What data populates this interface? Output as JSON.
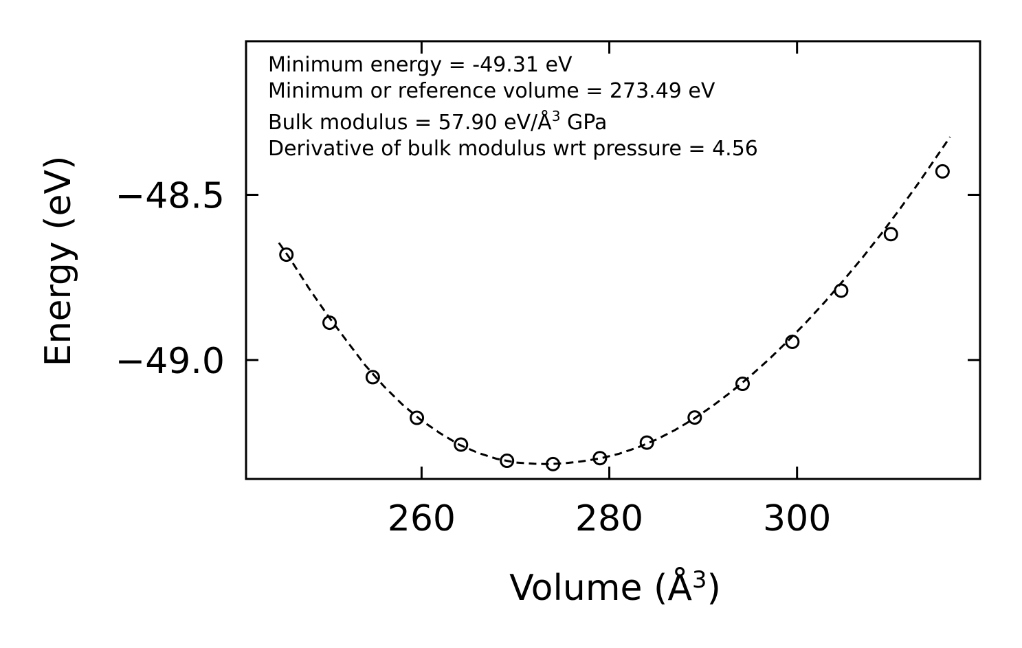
{
  "chart_data": {
    "type": "line",
    "title": "",
    "xlabel": "Volume (Å",
    "xlabel_sup": "3",
    "xlabel_close": ")",
    "ylabel": "Energy (eV)",
    "xlim": [
      241.3,
      319.5
    ],
    "ylim": [
      -49.36,
      -48.035
    ],
    "xticks": [
      260,
      280,
      300
    ],
    "xtick_labels": [
      "260",
      "280",
      "300"
    ],
    "yticks": [
      -48.5,
      -49.0
    ],
    "ytick_labels": [
      "−48.5",
      "−49.0"
    ],
    "grid": false,
    "legend": "none",
    "series": [
      {
        "name": "data",
        "style": "open-circle-markers",
        "x": [
          245.6,
          250.2,
          254.8,
          259.5,
          264.2,
          269.1,
          274.0,
          279.0,
          284.0,
          289.1,
          294.2,
          299.5,
          304.7,
          310.0,
          315.5
        ],
        "y": [
          -48.681,
          -48.887,
          -49.052,
          -49.175,
          -49.256,
          -49.305,
          -49.315,
          -49.297,
          -49.25,
          -49.174,
          -49.072,
          -48.945,
          -48.79,
          -48.619,
          -48.429
        ]
      },
      {
        "name": "fit",
        "style": "dashed-line",
        "x": [
          244.8,
          246.0,
          248.0,
          250.0,
          252.0,
          254.0,
          256.0,
          258.0,
          260.0,
          262.0,
          264.0,
          266.0,
          268.0,
          270.0,
          272.0,
          273.5,
          275.0,
          277.0,
          279.0,
          281.0,
          283.0,
          285.0,
          287.0,
          289.0,
          291.0,
          293.0,
          295.0,
          297.0,
          299.0,
          301.0,
          303.0,
          305.0,
          307.0,
          309.0,
          311.0,
          313.0,
          315.0,
          316.3
        ],
        "y": [
          -48.645,
          -48.694,
          -48.783,
          -48.865,
          -48.941,
          -49.016,
          -49.08,
          -49.136,
          -49.183,
          -49.222,
          -49.256,
          -49.281,
          -49.299,
          -49.31,
          -49.314,
          -49.315,
          -49.313,
          -49.307,
          -49.298,
          -49.284,
          -49.265,
          -49.241,
          -49.212,
          -49.178,
          -49.139,
          -49.096,
          -49.049,
          -48.998,
          -48.943,
          -48.885,
          -48.823,
          -48.757,
          -48.689,
          -48.617,
          -48.541,
          -48.462,
          -48.379,
          -48.325
        ]
      }
    ],
    "annotations": [
      {
        "id": "min-energy",
        "text": "Minimum energy = -49.31 eV"
      },
      {
        "id": "min-volume",
        "text": "Minimum or reference volume = 273.49 eV"
      },
      {
        "id": "bulk-modulus",
        "text_pre": "Bulk modulus = 57.90 eV/Å",
        "sup": "3",
        "text_post": " GPa"
      },
      {
        "id": "bulk-derivative",
        "text": "Derivative of bulk modulus wrt pressure = 4.56"
      }
    ]
  }
}
